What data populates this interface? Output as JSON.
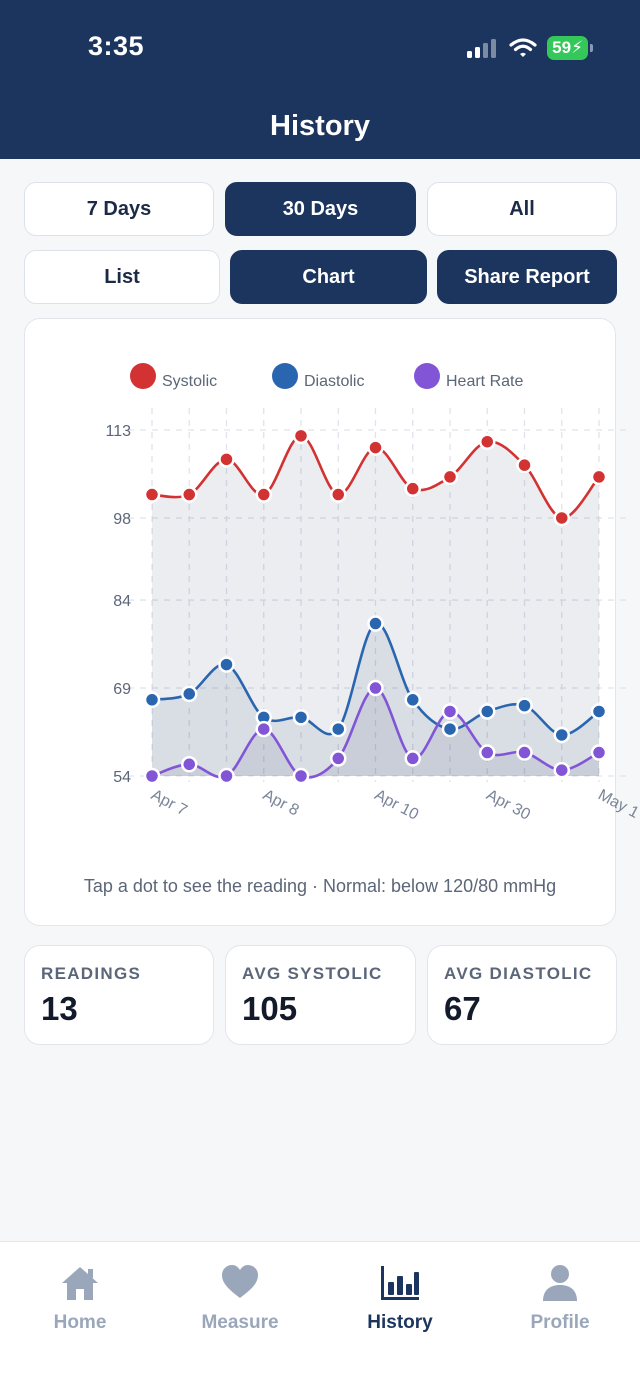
{
  "status": {
    "time": "3:35",
    "battery": "59"
  },
  "header": {
    "title": "History"
  },
  "range_tabs": [
    {
      "label": "7 Days",
      "active": false
    },
    {
      "label": "30 Days",
      "active": true
    },
    {
      "label": "All",
      "active": false
    }
  ],
  "view_tabs": [
    {
      "label": "List",
      "active": false
    },
    {
      "label": "Chart",
      "active": true
    },
    {
      "label": "Share Report",
      "active": true
    }
  ],
  "chart_data": {
    "type": "line",
    "x": [
      "Apr 7",
      "",
      "",
      "Apr 8",
      "",
      "",
      "Apr 10",
      "",
      "",
      "Apr 30",
      "",
      "",
      "May 1"
    ],
    "tick_labels": [
      "Apr 7",
      "Apr 8",
      "Apr 10",
      "Apr 30",
      "May 1"
    ],
    "y_ticks": [
      "113",
      "98",
      "84",
      "69",
      "54"
    ],
    "ylim": [
      54,
      113
    ],
    "legend_position": "top",
    "grid": true,
    "series": [
      {
        "name": "Systolic",
        "color": "#d23232",
        "values": [
          102,
          102,
          108,
          102,
          112,
          102,
          110,
          103,
          105,
          111,
          107,
          98,
          105
        ]
      },
      {
        "name": "Diastolic",
        "color": "#2a66b0",
        "values": [
          67,
          68,
          73,
          64,
          64,
          62,
          80,
          67,
          62,
          65,
          66,
          61,
          65
        ]
      },
      {
        "name": "Heart Rate",
        "color": "#8155d6",
        "values": [
          54,
          56,
          54,
          62,
          54,
          57,
          69,
          57,
          65,
          58,
          58,
          55,
          58
        ]
      }
    ]
  },
  "chart_note": "Tap a dot to see the reading · Normal: below 120/80 mmHg",
  "stats": [
    {
      "label": "READINGS",
      "value": "13"
    },
    {
      "label": "AVG SYSTOLIC",
      "value": "105"
    },
    {
      "label": "AVG DIASTOLIC",
      "value": "67"
    }
  ],
  "tabbar": [
    {
      "label": "Home",
      "icon": "home-icon",
      "active": false
    },
    {
      "label": "Measure",
      "icon": "heart-icon",
      "active": false
    },
    {
      "label": "History",
      "icon": "bar-chart-icon",
      "active": true
    },
    {
      "label": "Profile",
      "icon": "person-icon",
      "active": false
    }
  ]
}
